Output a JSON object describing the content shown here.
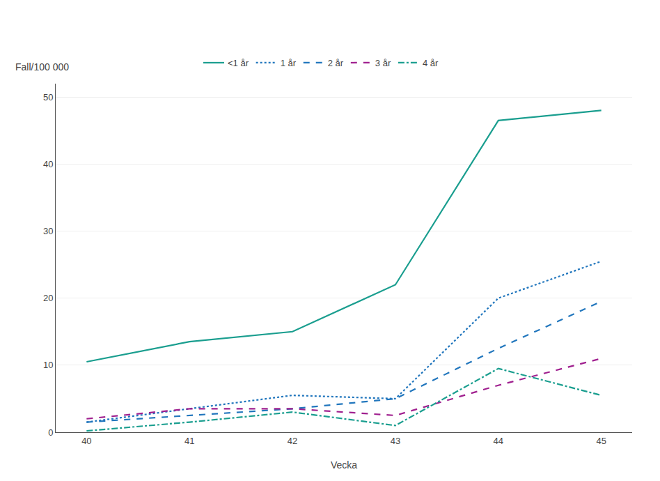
{
  "chart_data": {
    "type": "line",
    "x": [
      40,
      41,
      42,
      43,
      44,
      45
    ],
    "series": [
      {
        "name": "<1 år",
        "color": "#1a9e8f",
        "line_style": "solid",
        "values": [
          10.5,
          13.5,
          15.0,
          22.0,
          46.5,
          48.0
        ]
      },
      {
        "name": "1 år",
        "color": "#2176bd",
        "line_style": "dotted",
        "values": [
          1.5,
          3.5,
          5.5,
          5.0,
          20.0,
          25.5
        ]
      },
      {
        "name": "2 år",
        "color": "#2176bd",
        "line_style": "dashed",
        "values": [
          1.5,
          2.5,
          3.5,
          5.0,
          12.5,
          19.5
        ]
      },
      {
        "name": "3 år",
        "color": "#a0208f",
        "line_style": "dashed",
        "values": [
          2.0,
          3.5,
          3.5,
          2.5,
          7.0,
          11.0
        ]
      },
      {
        "name": "4 år",
        "color": "#1a9e8f",
        "line_style": "dashdot",
        "values": [
          0.2,
          1.5,
          3.0,
          1.0,
          9.5,
          5.5
        ]
      }
    ],
    "xlabel": "Vecka",
    "ylabel": "Fall/100 000",
    "xlim": [
      39.7,
      45.3
    ],
    "ylim": [
      0,
      52
    ],
    "xticks": [
      40,
      41,
      42,
      43,
      44,
      45
    ],
    "yticks": [
      0,
      10,
      20,
      30,
      40,
      50
    ],
    "grid": true,
    "legend": "top"
  }
}
